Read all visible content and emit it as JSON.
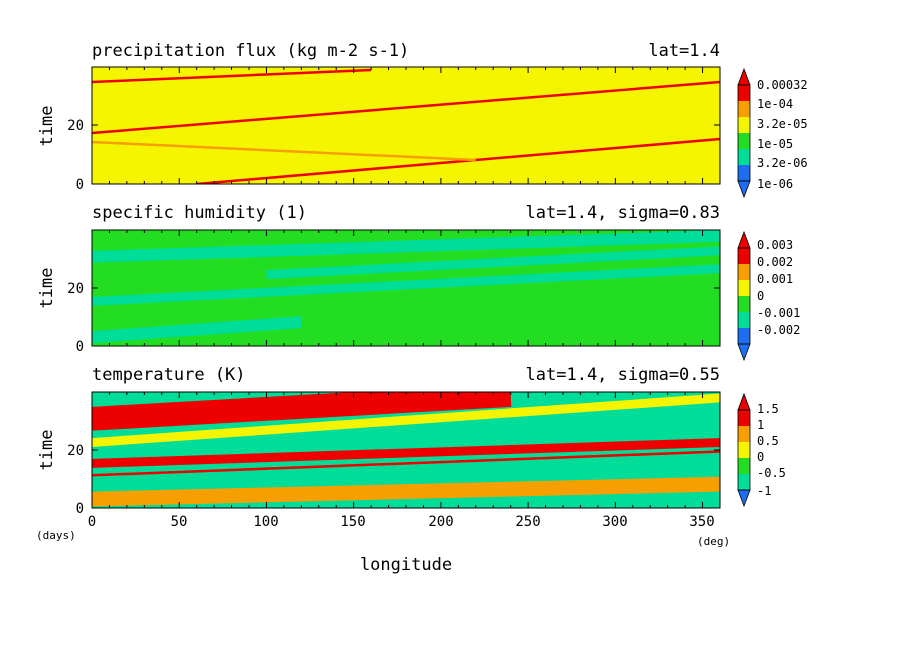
{
  "figure": {
    "xlabel": "longitude",
    "x_unit": "(deg)",
    "time_unit": "(days)",
    "xticks": [
      "0",
      "50",
      "100",
      "150",
      "200",
      "250",
      "300",
      "350"
    ],
    "xlim": [
      0,
      360
    ],
    "colors": {
      "red": "#ee0000",
      "orange": "#f5a000",
      "yellow": "#f5f500",
      "green": "#22dd22",
      "teal": "#00dd99",
      "blue": "#1e6ef5"
    }
  },
  "chart_data": [
    {
      "type": "heatmap",
      "title": "precipitation flux (kg m-2 s-1)",
      "annotation": "lat=1.4",
      "xlabel": "longitude",
      "ylabel": "time",
      "xlim": [
        0,
        360
      ],
      "ylim": [
        0,
        39
      ],
      "yticks": [
        "0",
        "20"
      ],
      "colorbar_labels": [
        "0.00032",
        "1e-04",
        "3.2e-05",
        "1e-05",
        "3.2e-06",
        "1e-06"
      ],
      "colorbar_colors": [
        "#1e6ef5",
        "#00dd99",
        "#22dd22",
        "#f5f500",
        "#f5a000",
        "#ee0000"
      ],
      "background_level": 3,
      "features": [
        {
          "kind": "line",
          "x0": 0,
          "t0": 17,
          "x1": 360,
          "t1": 34,
          "level": 5
        },
        {
          "kind": "line",
          "x0": 0,
          "t0": 34,
          "x1": 160,
          "t1": 38,
          "level": 5
        },
        {
          "kind": "line",
          "x0": 60,
          "t0": 0,
          "x1": 360,
          "t1": 15,
          "level": 5
        },
        {
          "kind": "line",
          "x0": 0,
          "t0": 14,
          "x1": 220,
          "t1": 8,
          "level": 4
        },
        {
          "kind": "band",
          "x0": 0,
          "t0": 22,
          "x1": 360,
          "t1": 39,
          "width": 6,
          "level": 3
        }
      ]
    },
    {
      "type": "heatmap",
      "title": "specific humidity (1)",
      "annotation": "lat=1.4, sigma=0.83",
      "xlabel": "longitude",
      "ylabel": "time",
      "xlim": [
        0,
        360
      ],
      "ylim": [
        0,
        39
      ],
      "yticks": [
        "0",
        "20"
      ],
      "colorbar_labels": [
        "0.003",
        "0.002",
        "0.001",
        "0",
        "-0.001",
        "-0.002"
      ],
      "colorbar_colors": [
        "#1e6ef5",
        "#00dd99",
        "#22dd22",
        "#f5f500",
        "#f5a000",
        "#ee0000"
      ],
      "background_level": 2,
      "features": [
        {
          "kind": "band",
          "x0": 0,
          "t0": 30,
          "x1": 360,
          "t1": 37,
          "width": 4,
          "level": 1
        },
        {
          "kind": "band",
          "x0": 100,
          "t0": 24,
          "x1": 360,
          "t1": 32,
          "width": 3,
          "level": 1
        },
        {
          "kind": "band",
          "x0": 0,
          "t0": 15,
          "x1": 360,
          "t1": 26,
          "width": 3,
          "level": 1
        },
        {
          "kind": "band",
          "x0": 0,
          "t0": 3,
          "x1": 120,
          "t1": 8,
          "width": 4,
          "level": 1
        }
      ]
    },
    {
      "type": "heatmap",
      "title": "temperature (K)",
      "annotation": "lat=1.4, sigma=0.55",
      "xlabel": "longitude",
      "ylabel": "time",
      "xlim": [
        0,
        360
      ],
      "ylim": [
        0,
        39
      ],
      "yticks": [
        "0",
        "20"
      ],
      "colorbar_labels": [
        "1.5",
        "1",
        "0.5",
        "0",
        "-0.5",
        "-1"
      ],
      "colorbar_colors": [
        "#1e6ef5",
        "#00dd99",
        "#22dd22",
        "#f5f500",
        "#f5a000",
        "#ee0000"
      ],
      "background_level": 1,
      "features": [
        {
          "kind": "band",
          "x0": 0,
          "t0": 30,
          "x1": 240,
          "t1": 38,
          "width": 8,
          "level": 5
        },
        {
          "kind": "band",
          "x0": 0,
          "t0": 22,
          "x1": 360,
          "t1": 37,
          "width": 3,
          "level": 3
        },
        {
          "kind": "line",
          "x0": 0,
          "t0": 18,
          "x1": 360,
          "t1": 31,
          "level": 1
        },
        {
          "kind": "band",
          "x0": 0,
          "t0": 15,
          "x1": 360,
          "t1": 22,
          "width": 3,
          "level": 5
        },
        {
          "kind": "band",
          "x0": 0,
          "t0": 3,
          "x1": 360,
          "t1": 8,
          "width": 5,
          "level": 4
        },
        {
          "kind": "line",
          "x0": 0,
          "t0": 11,
          "x1": 360,
          "t1": 19,
          "level": 5
        }
      ]
    }
  ]
}
